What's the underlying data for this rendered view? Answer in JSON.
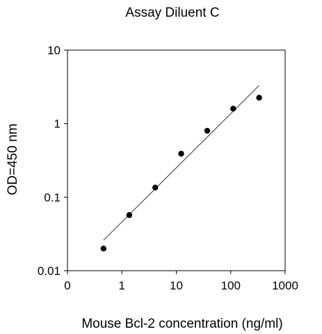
{
  "chart_data": {
    "type": "scatter",
    "title": "Assay Diluent C",
    "xlabel": "Mouse Bcl-2 concentration (ng/ml)",
    "ylabel": "OD=450 nm",
    "x_scale": "log",
    "y_scale": "log",
    "xlim": [
      0.1,
      1000
    ],
    "ylim": [
      0.01,
      10
    ],
    "x_ticks": [
      0.1,
      1,
      10,
      100,
      1000
    ],
    "x_tick_labels": [
      "0",
      "1",
      "10",
      "100",
      "1000"
    ],
    "y_ticks": [
      0.01,
      0.1,
      1,
      10
    ],
    "y_tick_labels": [
      "0.01",
      "0.1",
      "1",
      "10"
    ],
    "grid": false,
    "legend": "none",
    "points": [
      {
        "x": 0.46,
        "y": 0.02
      },
      {
        "x": 1.37,
        "y": 0.057
      },
      {
        "x": 4.1,
        "y": 0.135
      },
      {
        "x": 12.3,
        "y": 0.39
      },
      {
        "x": 37,
        "y": 0.8
      },
      {
        "x": 111,
        "y": 1.6
      },
      {
        "x": 333,
        "y": 2.25
      }
    ],
    "fit_line": [
      {
        "x": 0.46,
        "y": 0.026
      },
      {
        "x": 333,
        "y": 3.3
      }
    ],
    "colors": {
      "marker": "#000000",
      "fit_line": "#000000",
      "axes": "#000000"
    }
  }
}
